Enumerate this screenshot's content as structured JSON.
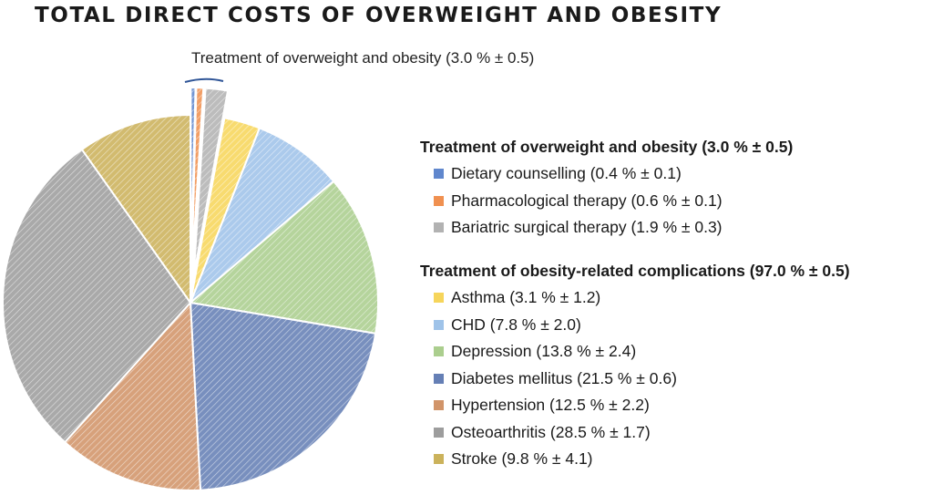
{
  "chart_data": {
    "type": "pie",
    "title": "TOTAL DIRECT COSTS OF OVERWEIGHT AND OBESITY",
    "annotation": "Treatment of overweight and obesity (3.0 % ± 0.5)",
    "legend_position": "right",
    "groups": [
      {
        "label": "Treatment of overweight and obesity (3.0 % ± 0.5)",
        "exploded": true,
        "slices": [
          {
            "name": "Dietary counselling",
            "label": "Dietary counselling  (0.4 % ± 0.1)",
            "value": 0.4,
            "color": "#4472C4"
          },
          {
            "name": "Pharmacological therapy",
            "label": "Pharmacological therapy  (0.6 % ± 0.1)",
            "value": 0.6,
            "color": "#ED7D31"
          },
          {
            "name": "Bariatric surgical therapy",
            "label": "Bariatric surgical therapy  (1.9 % ± 0.3)",
            "value": 1.9,
            "color": "#A5A5A5"
          }
        ]
      },
      {
        "label": "Treatment of obesity-related complications (97.0 % ± 0.5)",
        "exploded": false,
        "slices": [
          {
            "name": "Asthma",
            "label": "Asthma  (3.1 % ± 1.2)",
            "value": 3.1,
            "color": "#F5CE3E"
          },
          {
            "name": "CHD",
            "label": "CHD (7.8 % ± 2.0)",
            "value": 7.8,
            "color": "#8EB8E5"
          },
          {
            "name": "Depression",
            "label": "Depression  (13.8 % ± 2.4)",
            "value": 13.8,
            "color": "#9CC57A"
          },
          {
            "name": "Diabetes mellitus",
            "label": "Diabetes mellitus (21.5 % ± 0.6)",
            "value": 21.5,
            "color": "#4A69A8"
          },
          {
            "name": "Hypertension",
            "label": "Hypertension  (12.5 % ± 2.2)",
            "value": 12.5,
            "color": "#C9814F"
          },
          {
            "name": "Osteoarthritis",
            "label": "Osteoarthritis  (28.5 % ± 1.7)",
            "value": 28.5,
            "color": "#8C8C8C"
          },
          {
            "name": "Stroke",
            "label": "Stroke (9.8 % ±  4.1)",
            "value": 9.8,
            "color": "#C2A43E"
          }
        ]
      }
    ]
  }
}
